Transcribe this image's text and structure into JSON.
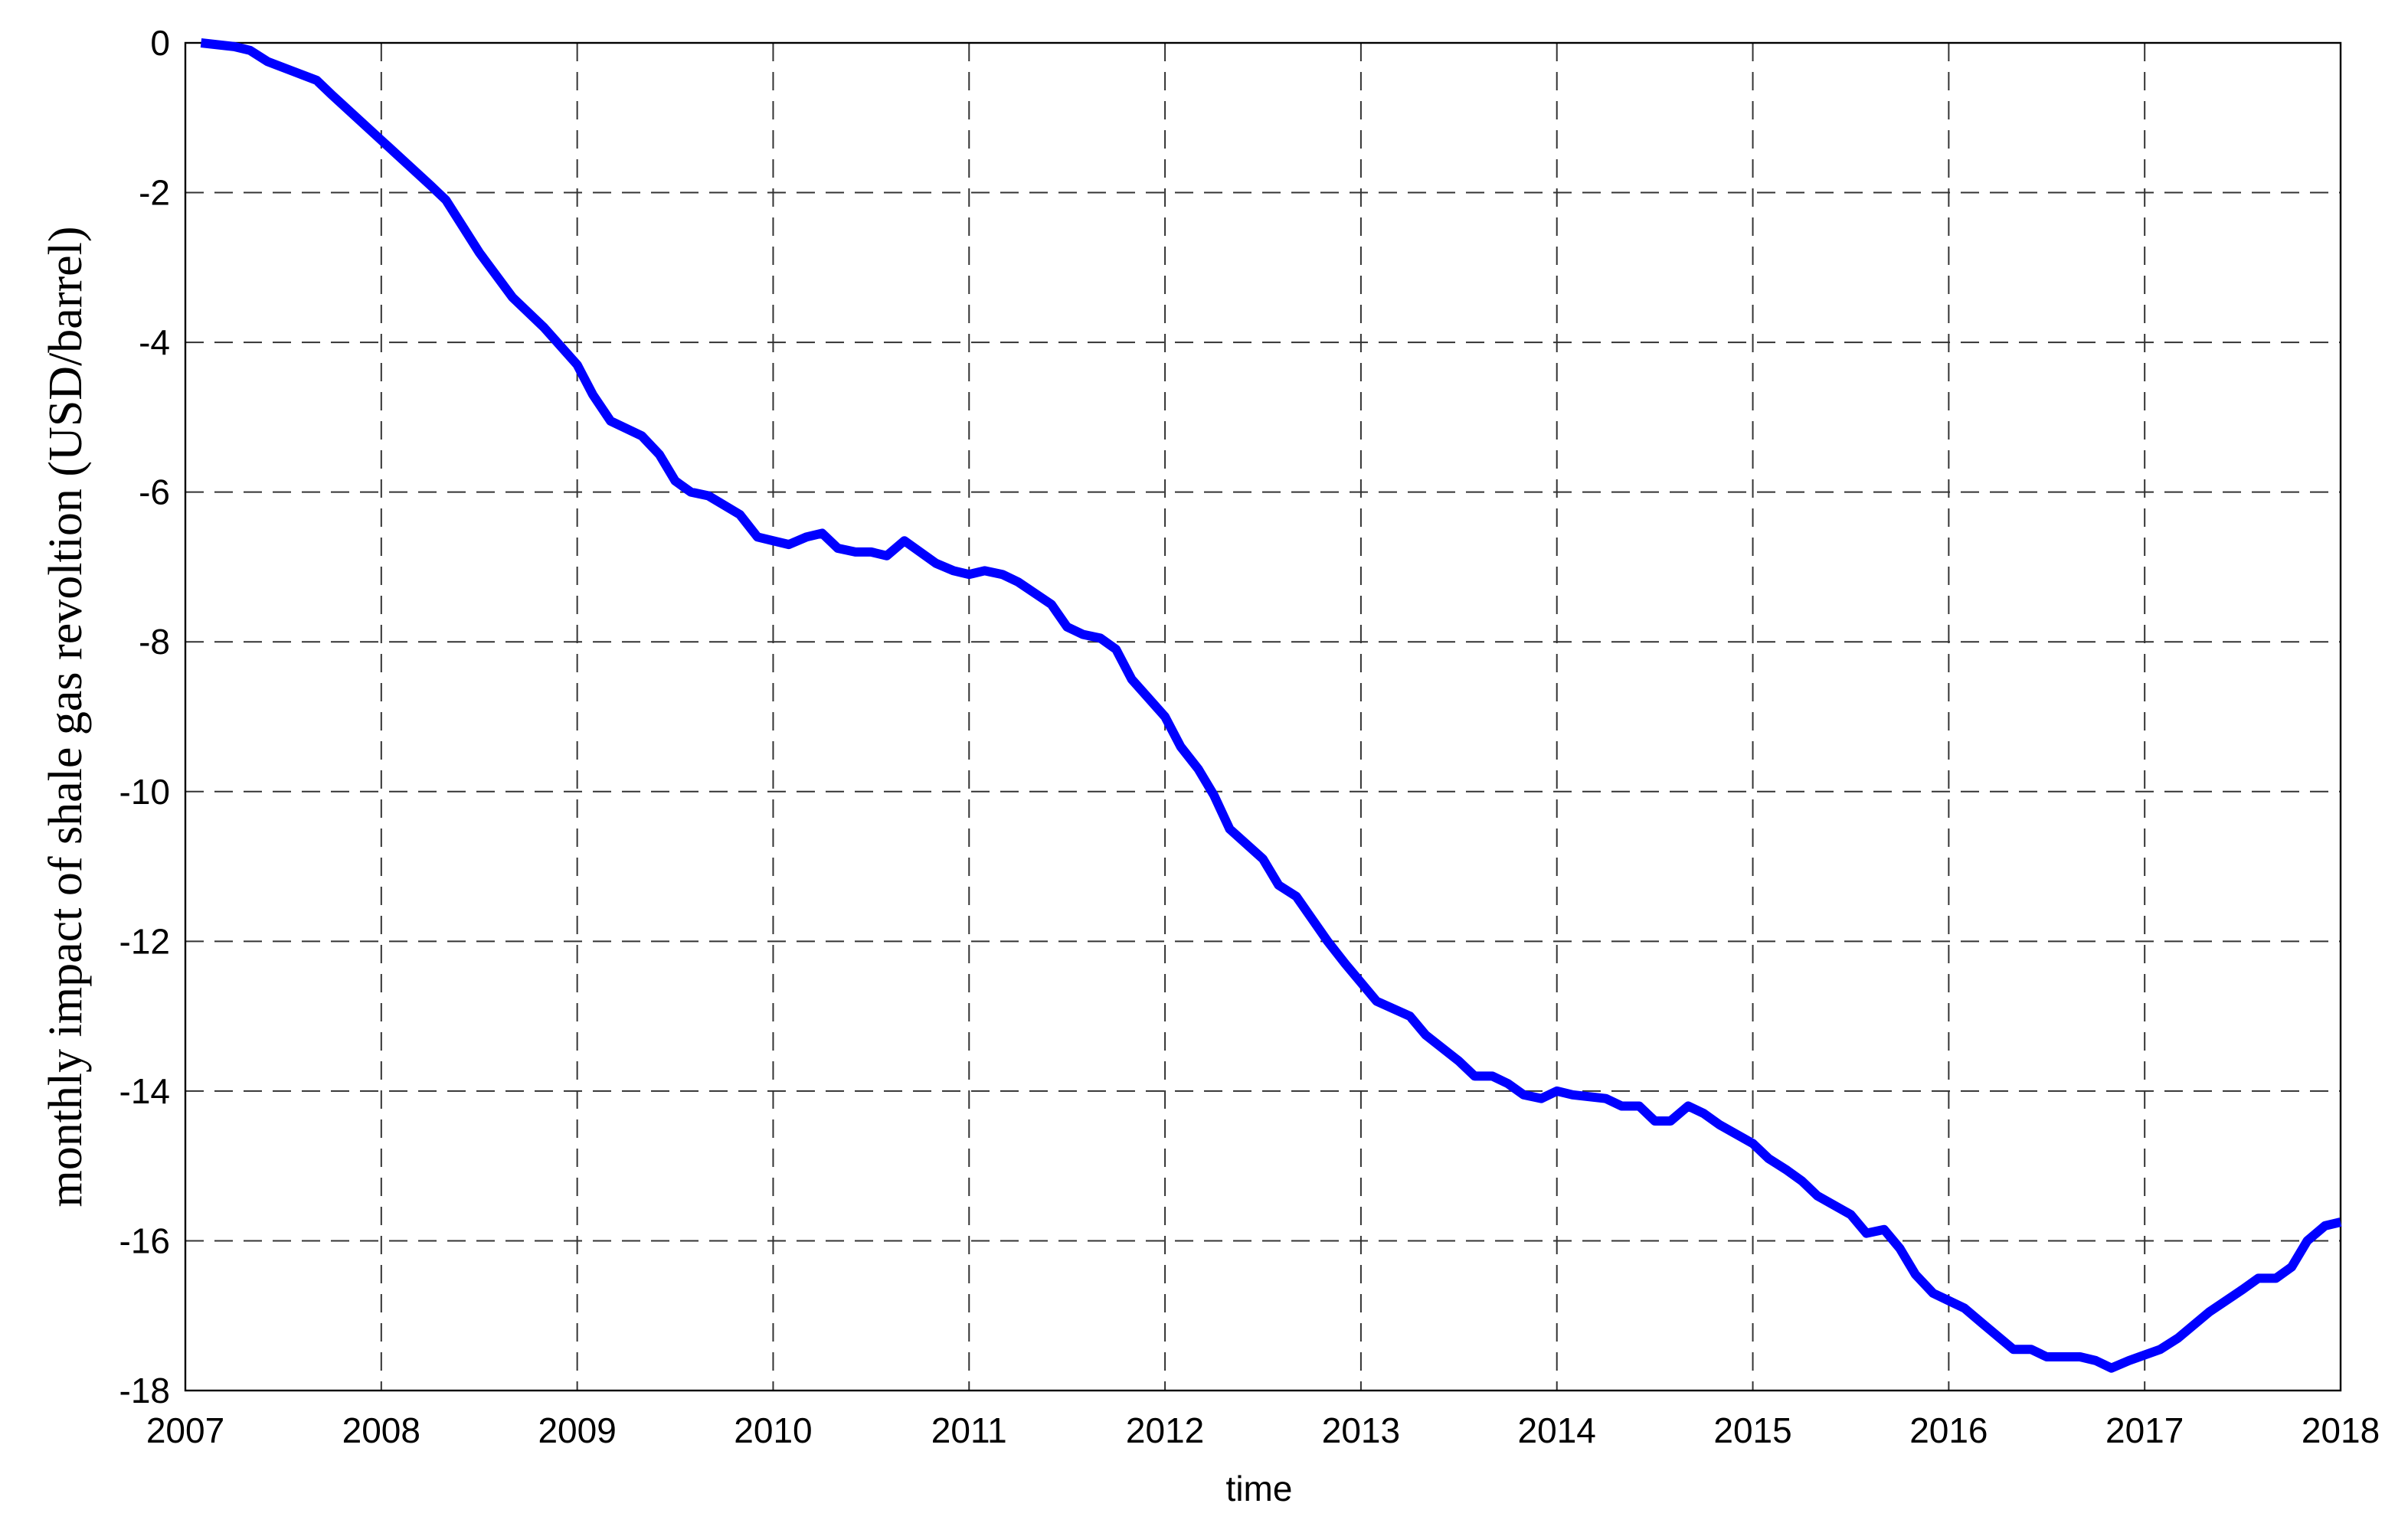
{
  "chart_data": {
    "type": "line",
    "xlabel": "time",
    "ylabel": "monthly impact of shale gas revoltion (USD/barrel)",
    "xlim": [
      2007,
      2018
    ],
    "xticks": [
      2007,
      2008,
      2009,
      2010,
      2011,
      2012,
      2013,
      2014,
      2015,
      2016,
      2017,
      2018
    ],
    "ylim": [
      -18,
      0
    ],
    "yticks": [
      -18,
      -16,
      -14,
      -12,
      -10,
      -8,
      -6,
      -4,
      -2,
      0
    ],
    "grid": true,
    "x": [
      2007.08,
      2007.25,
      2007.33,
      2007.42,
      2007.67,
      2007.75,
      2008.0,
      2008.25,
      2008.33,
      2008.5,
      2008.67,
      2008.83,
      2009.0,
      2009.08,
      2009.17,
      2009.33,
      2009.42,
      2009.5,
      2009.58,
      2009.67,
      2009.83,
      2009.92,
      2010.08,
      2010.17,
      2010.25,
      2010.33,
      2010.42,
      2010.5,
      2010.58,
      2010.67,
      2010.83,
      2010.92,
      2011.0,
      2011.08,
      2011.17,
      2011.25,
      2011.42,
      2011.5,
      2011.58,
      2011.67,
      2011.75,
      2011.83,
      2012.0,
      2012.08,
      2012.17,
      2012.25,
      2012.33,
      2012.5,
      2012.58,
      2012.67,
      2012.75,
      2012.83,
      2012.92,
      2013.08,
      2013.25,
      2013.33,
      2013.5,
      2013.58,
      2013.67,
      2013.75,
      2013.83,
      2013.92,
      2014.0,
      2014.08,
      2014.25,
      2014.33,
      2014.42,
      2014.5,
      2014.58,
      2014.67,
      2014.75,
      2014.83,
      2015.0,
      2015.08,
      2015.17,
      2015.25,
      2015.33,
      2015.5,
      2015.58,
      2015.67,
      2015.75,
      2015.83,
      2015.92,
      2016.08,
      2016.17,
      2016.33,
      2016.42,
      2016.5,
      2016.67,
      2016.75,
      2016.83,
      2016.92,
      2017.08,
      2017.17,
      2017.33,
      2017.5,
      2017.58,
      2017.67,
      2017.75,
      2017.83,
      2017.92,
      2018.0
    ],
    "series": [
      {
        "color": "#0000ff",
        "values": [
          0,
          -0.05,
          -0.1,
          -0.25,
          -0.5,
          -0.7,
          -1.3,
          -1.9,
          -2.1,
          -2.8,
          -3.4,
          -3.8,
          -4.3,
          -4.7,
          -5.05,
          -5.25,
          -5.5,
          -5.85,
          -6.0,
          -6.05,
          -6.3,
          -6.6,
          -6.7,
          -6.6,
          -6.55,
          -6.75,
          -6.8,
          -6.8,
          -6.85,
          -6.65,
          -6.95,
          -7.05,
          -7.1,
          -7.05,
          -7.1,
          -7.2,
          -7.5,
          -7.8,
          -7.9,
          -7.95,
          -8.1,
          -8.5,
          -9.0,
          -9.4,
          -9.7,
          -10.05,
          -10.5,
          -10.9,
          -11.25,
          -11.4,
          -11.7,
          -12.0,
          -12.3,
          -12.8,
          -13.0,
          -13.25,
          -13.6,
          -13.8,
          -13.8,
          -13.9,
          -14.05,
          -14.1,
          -14.0,
          -14.05,
          -14.1,
          -14.2,
          -14.2,
          -14.4,
          -14.4,
          -14.2,
          -14.3,
          -14.45,
          -14.7,
          -14.9,
          -15.05,
          -15.2,
          -15.4,
          -15.65,
          -15.9,
          -15.85,
          -16.1,
          -16.45,
          -16.7,
          -16.9,
          -17.1,
          -17.45,
          -17.45,
          -17.55,
          -17.55,
          -17.6,
          -17.7,
          -17.6,
          -17.45,
          -17.3,
          -16.95,
          -16.65,
          -16.5,
          -16.5,
          -16.35,
          -16.0,
          -15.8,
          -15.75
        ]
      }
    ]
  }
}
